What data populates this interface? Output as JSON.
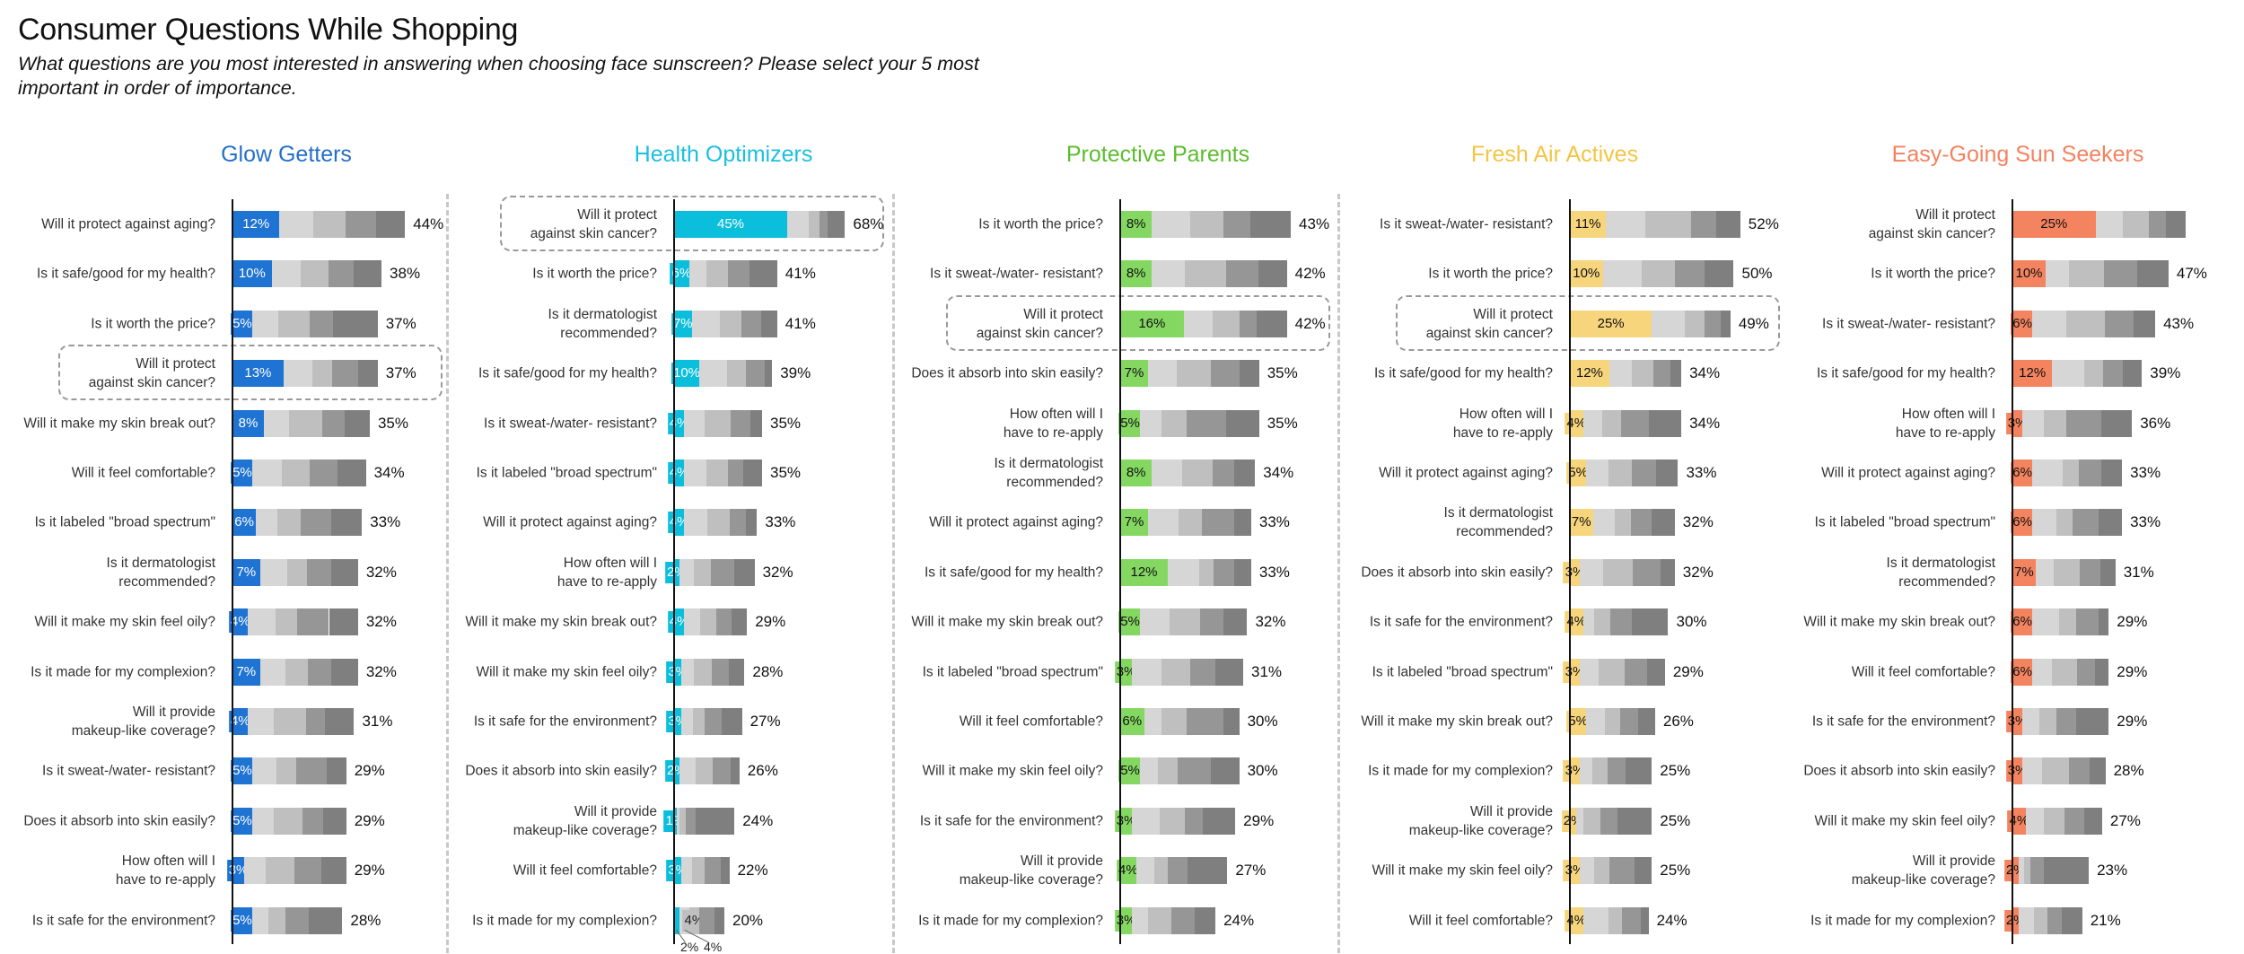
{
  "title": "Consumer Questions While Shopping",
  "subtitle": "What questions are you most interested in answering when choosing face sunscreen? Please select your 5 most important in order of importance.",
  "chart_data": {
    "type": "bar",
    "orientation": "horizontal-stacked",
    "rank_segment_colors": [
      "#d6d6d6",
      "#bfbfbf",
      "#969696",
      "#7f7f7f"
    ],
    "panels": [
      {
        "name": "Glow Getters",
        "color": "#1f73d2",
        "title_color": "#2470cc",
        "label_color": "#ffffff",
        "rows": [
          {
            "q": "Will it protect against aging?",
            "segments": [
              12,
              8.6,
              8.2,
              7.9,
              7.3
            ],
            "total": 44
          },
          {
            "q": "Is it safe/good for my health?",
            "segments": [
              10,
              7.5,
              6.9,
              6.5,
              7.1
            ],
            "total": 38
          },
          {
            "q": "Is it worth the price?",
            "segments": [
              5,
              6.6,
              8.1,
              6,
              11.3
            ],
            "total": 37
          },
          {
            "q": "Will it protect\nagainst skin cancer?",
            "segments": [
              13,
              7.3,
              5.2,
              6.5,
              5
            ],
            "total": 37,
            "highlighted": true
          },
          {
            "q": "Will it make my skin break out?",
            "segments": [
              8,
              6.4,
              8.5,
              5.7,
              6.4
            ],
            "total": 35
          },
          {
            "q": "Will it feel comfortable?",
            "segments": [
              5,
              7.7,
              7,
              7.1,
              7.2
            ],
            "total": 34
          },
          {
            "q": "Is it labeled \"broad spectrum\"",
            "segments": [
              6,
              5.5,
              5.8,
              7.8,
              7.9
            ],
            "total": 33
          },
          {
            "q": "Is it dermatologist\nrecommended?",
            "segments": [
              7,
              7,
              5.1,
              6,
              6.9
            ],
            "total": 32
          },
          {
            "q": "Will it make my skin feel oily?",
            "segments": [
              4,
              6.9,
              5.5,
              8.2,
              7.4
            ],
            "total": 32
          },
          {
            "q": "Is it made for my complexion?",
            "segments": [
              7,
              6.5,
              5.8,
              5.9,
              6.8
            ],
            "total": 32
          },
          {
            "q": "Will it provide\nmakeup-like coverage?",
            "segments": [
              4,
              6.6,
              8.1,
              4.8,
              7.5
            ],
            "total": 31
          },
          {
            "q": "Is it sweat-/water- resistant?",
            "segments": [
              5,
              6.2,
              5,
              7.9,
              4.9
            ],
            "total": 29
          },
          {
            "q": "Does it absorb into skin easily?",
            "segments": [
              5,
              5.5,
              7.3,
              5.3,
              5.9
            ],
            "total": 29
          },
          {
            "q": "How often will I\nhave to re-apply",
            "segments": [
              3,
              5.4,
              7.3,
              6.9,
              6.4
            ],
            "total": 29
          },
          {
            "q": "Is it safe for the environment?",
            "segments": [
              5,
              4.2,
              4.4,
              5.9,
              8.5
            ],
            "total": 28
          }
        ]
      },
      {
        "name": "Health Optimizers",
        "color": "#0bbfdc",
        "title_color": "#1bbfe0",
        "label_color": "#ffffff",
        "rows": [
          {
            "q": "Will it protect\nagainst skin cancer?",
            "segments": [
              45,
              8.6,
              4.4,
              3.1,
              6.9
            ],
            "total": 68,
            "highlighted": true
          },
          {
            "q": "Is it worth the price?",
            "segments": [
              6,
              7,
              8.5,
              8.5,
              11
            ],
            "total": 41
          },
          {
            "q": "Is it dermatologist\nrecommended?",
            "segments": [
              7,
              11.2,
              8.7,
              7.6,
              6.5
            ],
            "total": 41
          },
          {
            "q": "Is it safe/good for my health?",
            "segments": [
              10,
              11,
              7.5,
              7.6,
              2.9
            ],
            "total": 39
          },
          {
            "q": "Is it sweat-/water- resistant?",
            "segments": [
              4,
              8,
              10.5,
              8,
              4.5
            ],
            "total": 35
          },
          {
            "q": "Is it labeled \"broad spectrum\"",
            "segments": [
              4,
              9,
              8.3,
              6.2,
              7.5
            ],
            "total": 35
          },
          {
            "q": "Will it protect against aging?",
            "segments": [
              4,
              9.3,
              9,
              6.4,
              4.3
            ],
            "total": 33
          },
          {
            "q": "How often will I\nhave to re-apply",
            "segments": [
              2,
              5.7,
              7.1,
              9,
              8.2
            ],
            "total": 32
          },
          {
            "q": "Will it make my skin break out?",
            "segments": [
              4,
              6.3,
              6.4,
              6.2,
              6.1
            ],
            "total": 29
          },
          {
            "q": "Will it make my skin feel oily?",
            "segments": [
              3,
              4.8,
              7.1,
              6.9,
              6.2
            ],
            "total": 28
          },
          {
            "q": "Is it safe for the environment?",
            "segments": [
              3,
              4.5,
              4.6,
              6.7,
              8.2
            ],
            "total": 27
          },
          {
            "q": "Does it absorb into skin easily?",
            "segments": [
              2,
              6.5,
              6.9,
              7,
              3.6
            ],
            "total": 26
          },
          {
            "q": "Will it provide\nmakeup-like coverage?",
            "segments": [
              1,
              1.3,
              2.3,
              4,
              15.4
            ],
            "total": 24
          },
          {
            "q": "Will it feel comfortable?",
            "segments": [
              3,
              4,
              5.2,
              6.3,
              3.5
            ],
            "total": 22
          },
          {
            "q": "Is it made for my complexion?",
            "segments": [
              2,
              4,
              4,
              6,
              4
            ],
            "total": 20,
            "inner_label": "4%",
            "callouts": [
              "2%",
              "4%"
            ]
          }
        ]
      },
      {
        "name": "Protective Parents",
        "color": "#84d862",
        "title_color": "#5cbd2e",
        "label_color": "#111111",
        "rows": [
          {
            "q": "Is it worth the price?",
            "segments": [
              8,
              9.7,
              8.4,
              6.6,
              10.3
            ],
            "total": 43
          },
          {
            "q": "Is it sweat-/water- resistant?",
            "segments": [
              8,
              8.4,
              10.4,
              8.1,
              7.1
            ],
            "total": 42
          },
          {
            "q": "Will it protect\nagainst skin cancer?",
            "segments": [
              16,
              7.4,
              6.8,
              4.3,
              7.5
            ],
            "total": 42,
            "highlighted": true
          },
          {
            "q": "Does it absorb into skin easily?",
            "segments": [
              7,
              7.2,
              8.6,
              7.3,
              4.9
            ],
            "total": 35
          },
          {
            "q": "How often will I\nhave to re-apply",
            "segments": [
              5,
              5.3,
              6.4,
              9.9,
              8.4
            ],
            "total": 35
          },
          {
            "q": "Is it dermatologist\nrecommended?",
            "segments": [
              8,
              7.5,
              7.8,
              5.5,
              5.2
            ],
            "total": 34
          },
          {
            "q": "Will it protect against aging?",
            "segments": [
              7,
              7.6,
              6.1,
              8,
              4.3
            ],
            "total": 33
          },
          {
            "q": "Is it safe/good for my health?",
            "segments": [
              12,
              7.8,
              3.7,
              5.2,
              4.3
            ],
            "total": 33
          },
          {
            "q": "Will it make my skin break out?",
            "segments": [
              5,
              7.5,
              7.7,
              5.9,
              5.9
            ],
            "total": 32
          },
          {
            "q": "Is it labeled \"broad spectrum\"",
            "segments": [
              3,
              7.5,
              7.2,
              6.3,
              7
            ],
            "total": 31
          },
          {
            "q": "Will it feel comfortable?",
            "segments": [
              6,
              4.5,
              6.3,
              9.2,
              4
            ],
            "total": 30
          },
          {
            "q": "Will it make my skin feel oily?",
            "segments": [
              5,
              4.4,
              5,
              8.5,
              7.1
            ],
            "total": 30
          },
          {
            "q": "Is it safe for the environment?",
            "segments": [
              3,
              6.9,
              6.4,
              4.6,
              8.1
            ],
            "total": 29
          },
          {
            "q": "Will it provide\nmakeup-like coverage?",
            "segments": [
              4,
              4.7,
              3.4,
              4.8,
              10.1
            ],
            "total": 27
          },
          {
            "q": "Is it made for my complexion?",
            "segments": [
              3,
              4.1,
              5.7,
              5.9,
              5.3
            ],
            "total": 24
          }
        ]
      },
      {
        "name": "Fresh Air Actives",
        "color": "#f6d57c",
        "title_color": "#f4c443",
        "label_color": "#111111",
        "rows": [
          {
            "q": "Is it sweat-/water- resistant?",
            "segments": [
              11,
              11.9,
              14.1,
              7.7,
              7.3
            ],
            "total": 52
          },
          {
            "q": "Is it worth the price?",
            "segments": [
              10,
              12,
              10,
              9.2,
              8.8
            ],
            "total": 50
          },
          {
            "q": "Will it protect\nagainst skin cancer?",
            "segments": [
              25,
              10.1,
              6,
              4.9,
              3
            ],
            "total": 49,
            "highlighted": true
          },
          {
            "q": "Is it safe/good for my health?",
            "segments": [
              12,
              6.8,
              6.8,
              5,
              3.4
            ],
            "total": 34
          },
          {
            "q": "How often will I\nhave to re-apply",
            "segments": [
              4,
              5.8,
              5.8,
              8.4,
              10
            ],
            "total": 34
          },
          {
            "q": "Will it protect against aging?",
            "segments": [
              5,
              6.8,
              7.1,
              7.5,
              6.6
            ],
            "total": 33
          },
          {
            "q": "Is it dermatologist\nrecommended?",
            "segments": [
              7,
              6.6,
              5.1,
              6.2,
              7.1
            ],
            "total": 32
          },
          {
            "q": "Does it absorb into skin easily?",
            "segments": [
              3,
              7.2,
              9,
              8.4,
              4.4
            ],
            "total": 32
          },
          {
            "q": "Is it safe for the environment?",
            "segments": [
              4,
              3.4,
              4.9,
              6.7,
              11
            ],
            "total": 30
          },
          {
            "q": "Is it labeled \"broad spectrum\"",
            "segments": [
              3,
              5.9,
              7.8,
              6.8,
              5.5
            ],
            "total": 29
          },
          {
            "q": "Will it make my skin break out?",
            "segments": [
              5,
              5.7,
              4.7,
              5.3,
              5.3
            ],
            "total": 26
          },
          {
            "q": "Is it made for my complexion?",
            "segments": [
              3,
              3.9,
              4.6,
              5.6,
              7.9
            ],
            "total": 25
          },
          {
            "q": "Will it provide\nmakeup-like coverage?",
            "segments": [
              2,
              2.1,
              5.3,
              5.1,
              10.5
            ],
            "total": 25
          },
          {
            "q": "Will it make my skin feel oily?",
            "segments": [
              3,
              4.5,
              4.5,
              7.7,
              5.3
            ],
            "total": 25
          },
          {
            "q": "Will it feel comfortable?",
            "segments": [
              4,
              7.8,
              4,
              5.8,
              2.4
            ],
            "total": 24
          }
        ]
      },
      {
        "name": "Easy-Going Sun Seekers",
        "color": "#f4835f",
        "title_color": "#f4825e",
        "label_color": "#111111",
        "rows": [
          {
            "q": "Will it protect\nagainst skin cancer?",
            "segments": [
              25,
              8.3,
              7.9,
              5,
              5.9
            ]
          },
          {
            "q": "Is it worth the price?",
            "segments": [
              10,
              7.1,
              10.5,
              10,
              9.4
            ],
            "total": 47
          },
          {
            "q": "Is it sweat-/water- resistant?",
            "segments": [
              6,
              10.1,
              11.7,
              8.6,
              6.6
            ],
            "total": 43
          },
          {
            "q": "Is it safe/good for my health?",
            "segments": [
              12,
              9.5,
              5.9,
              5.8,
              5.8
            ],
            "total": 39
          },
          {
            "q": "How often will I\nhave to re-apply",
            "segments": [
              3,
              6.4,
              6.9,
              10.5,
              9.2
            ],
            "total": 36
          },
          {
            "q": "Will it protect against aging?",
            "segments": [
              6,
              9.1,
              4.8,
              6.8,
              6.3
            ],
            "total": 33
          },
          {
            "q": "Is it labeled \"broad spectrum\"",
            "segments": [
              6,
              7.3,
              4.9,
              7.8,
              7
            ],
            "total": 33
          },
          {
            "q": "Is it dermatologist\nrecommended?",
            "segments": [
              7,
              5.5,
              7.9,
              6.2,
              4.4
            ],
            "total": 31
          },
          {
            "q": "Will it make my skin break out?",
            "segments": [
              6,
              8,
              5.2,
              6.7,
              3.1
            ],
            "total": 29
          },
          {
            "q": "Will it feel comfortable?",
            "segments": [
              6,
              5.8,
              7.6,
              5.4,
              4.2
            ],
            "total": 29
          },
          {
            "q": "Is it safe for the environment?",
            "segments": [
              3,
              5.2,
              5.1,
              5.9,
              9.8
            ],
            "total": 29
          },
          {
            "q": "Does it absorb into skin easily?",
            "segments": [
              3,
              6,
              8,
              6.3,
              4.7
            ],
            "total": 28
          },
          {
            "q": "Will it make my skin feel oily?",
            "segments": [
              4,
              5.4,
              6.3,
              5.8,
              5.5
            ],
            "total": 27
          },
          {
            "q": "Will it provide\nmakeup-like coverage?",
            "segments": [
              2,
              1.4,
              2,
              4.1,
              13.5
            ],
            "total": 23
          },
          {
            "q": "Is it made for my complexion?",
            "segments": [
              2,
              4.4,
              4.1,
              4.3,
              6.2
            ],
            "total": 21
          }
        ]
      }
    ]
  }
}
